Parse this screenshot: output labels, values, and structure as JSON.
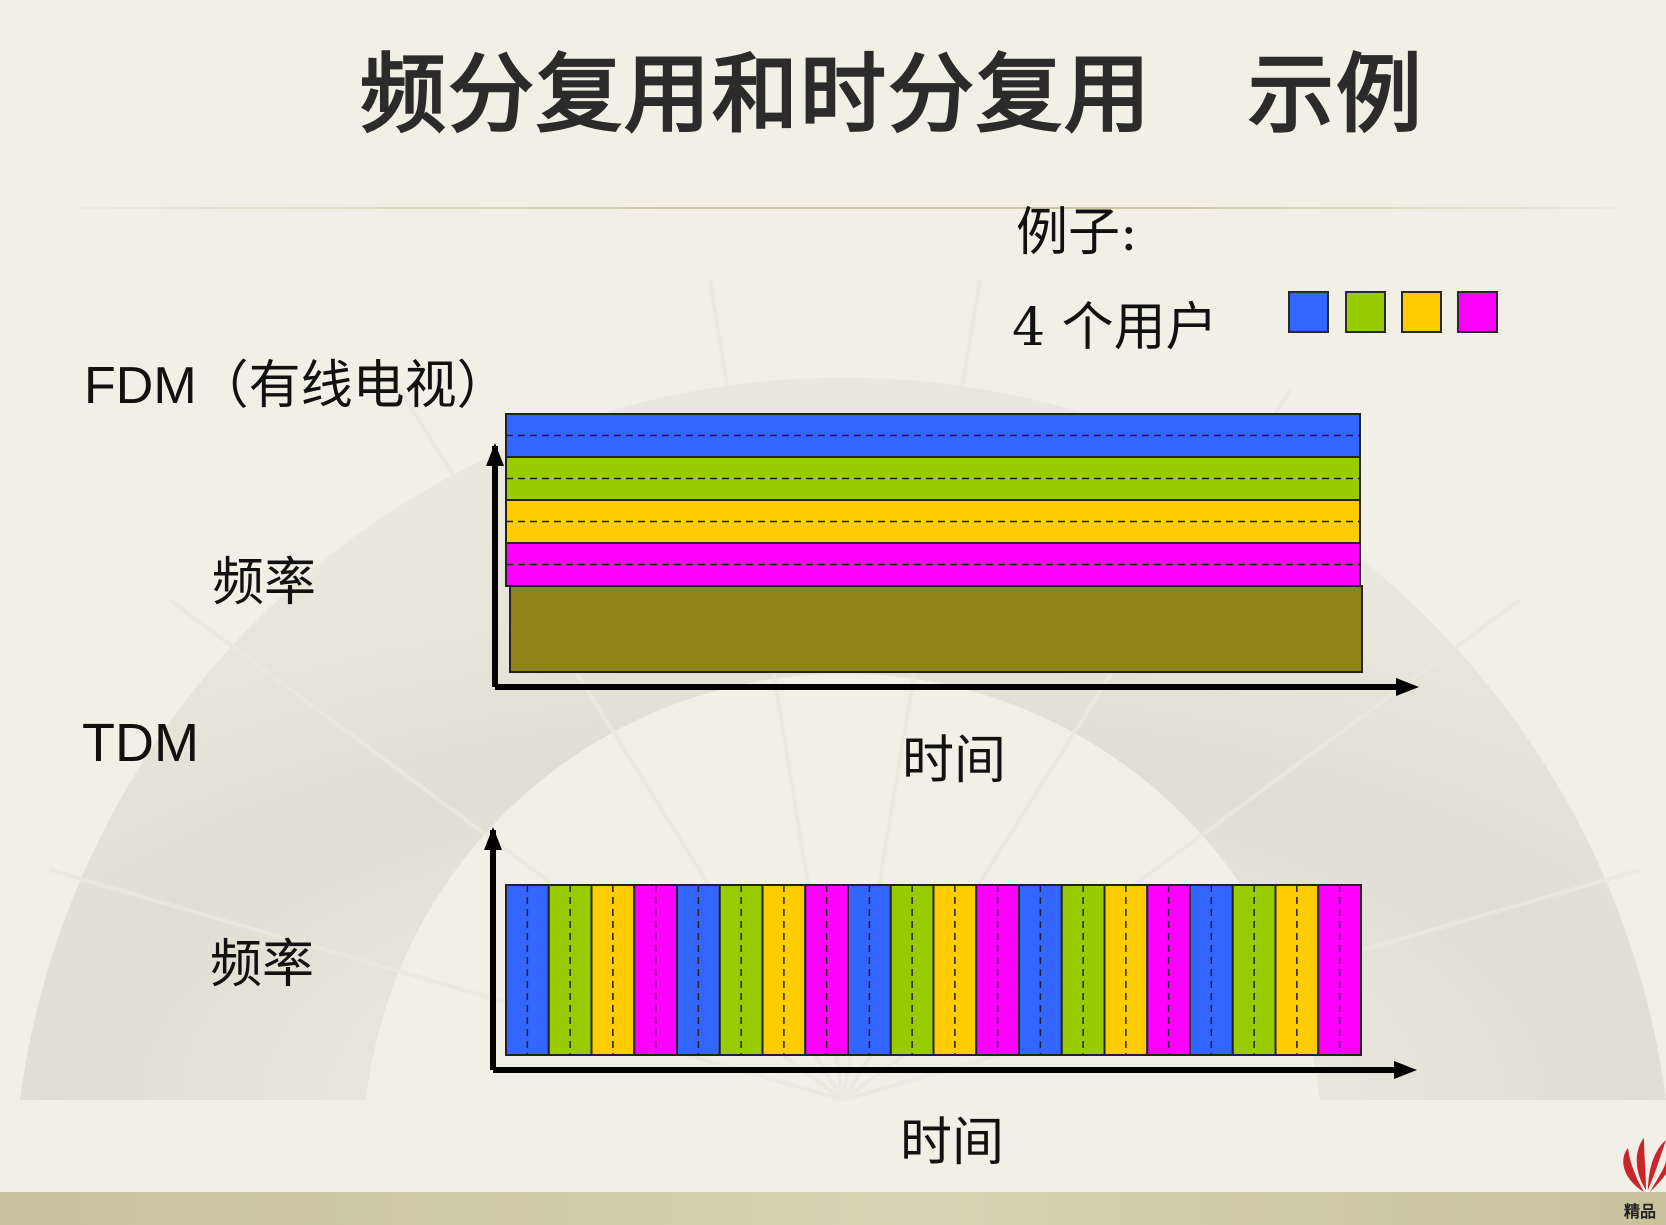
{
  "title": "频分复用和时分复用   示例",
  "legend": {
    "example_label": "例子:",
    "users_label": "4 个用户",
    "user_colors": [
      "#3366ff",
      "#99cc00",
      "#ffcc00",
      "#ff00ff"
    ]
  },
  "fdm": {
    "label": "FDM",
    "label_paren": "（有线电视）",
    "y_axis_label": "频率",
    "x_axis_label": "时间",
    "band_order": [
      0,
      1,
      2,
      3
    ],
    "unused_band_color": "#918318"
  },
  "tdm": {
    "label": "TDM",
    "y_axis_label": "频率",
    "x_axis_label": "时间",
    "slot_sequence": [
      0,
      1,
      2,
      3,
      0,
      1,
      2,
      3,
      0,
      1,
      2,
      3,
      0,
      1,
      2,
      3,
      0,
      1,
      2,
      3
    ]
  },
  "logo": {
    "text": "精品"
  }
}
